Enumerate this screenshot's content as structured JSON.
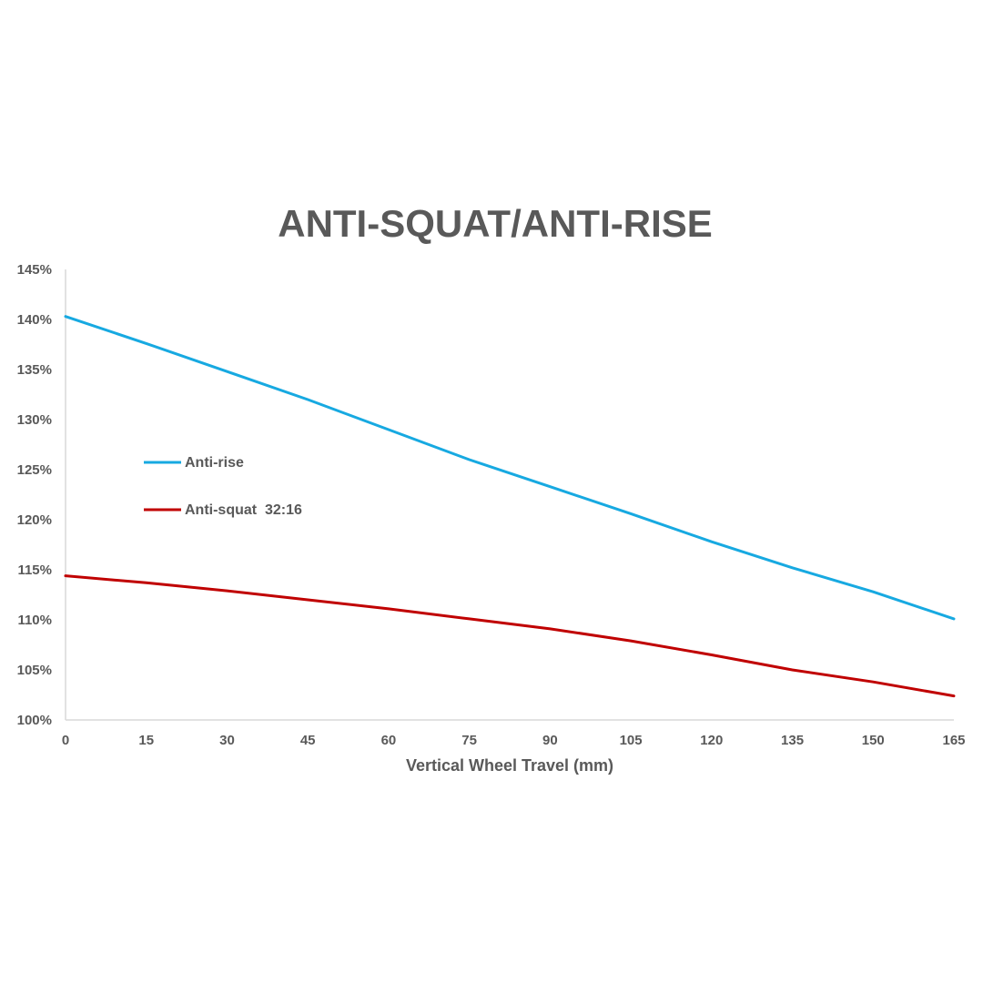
{
  "chart_data": {
    "type": "line",
    "title": "ANTI-SQUAT/ANTI-RISE",
    "xlabel": "Vertical Wheel Travel (mm)",
    "ylabel": "",
    "x": [
      0,
      15,
      30,
      45,
      60,
      75,
      90,
      105,
      120,
      135,
      150,
      165
    ],
    "x_ticks": [
      "0",
      "15",
      "30",
      "45",
      "60",
      "75",
      "90",
      "105",
      "120",
      "135",
      "150",
      "165"
    ],
    "y_ticks": [
      "100%",
      "105%",
      "110%",
      "115%",
      "120%",
      "125%",
      "130%",
      "135%",
      "140%",
      "145%"
    ],
    "xlim": [
      0,
      165
    ],
    "ylim": [
      100,
      145
    ],
    "grid": false,
    "legend_position": "left-middle",
    "series": [
      {
        "name": "Anti-rise",
        "color": "#17a9e1",
        "values": [
          140.3,
          137.6,
          134.8,
          132.0,
          129.0,
          126.0,
          123.3,
          120.6,
          117.8,
          115.2,
          112.8,
          110.1
        ]
      },
      {
        "name": "Anti-squat  32:16",
        "color": "#c00000",
        "values": [
          114.4,
          113.7,
          112.9,
          112.0,
          111.1,
          110.1,
          109.1,
          107.9,
          106.5,
          105.0,
          103.8,
          102.4
        ]
      }
    ]
  },
  "colors": {
    "text": "#595959",
    "axis": "#d9d9d9"
  }
}
